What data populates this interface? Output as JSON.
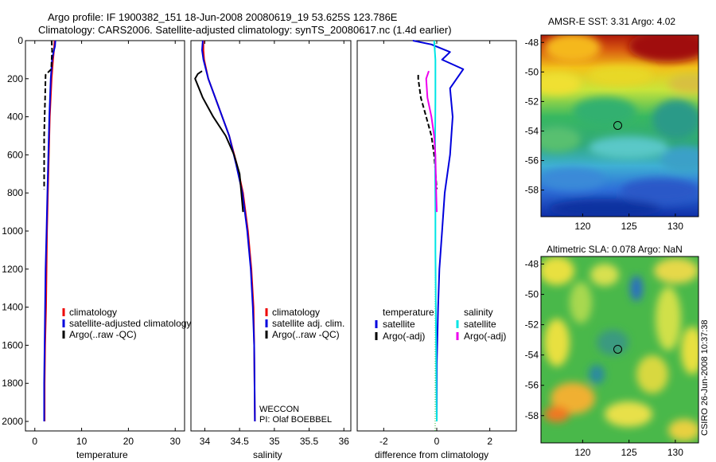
{
  "title_line1": "Argo profile: IF 1900382_151 18-Jun-2008 20080619_19 53.625S 123.786E",
  "title_line2": "Climatology: CARS2006. Satellite-adjusted climatology: synTS_20080617.nc (1.4d earlier)",
  "side_stamp": "CSIRO 26-Jun-2008 10:37:38",
  "chart_data": [
    {
      "id": "temperature",
      "type": "line",
      "xlabel": "temperature",
      "ylabel": "",
      "xlim": [
        -2,
        32
      ],
      "ylim": [
        2050,
        0
      ],
      "xticks": [
        0,
        10,
        20,
        30
      ],
      "yticks": [
        0,
        200,
        400,
        600,
        800,
        1000,
        1200,
        1400,
        1600,
        1800,
        2000
      ],
      "legend": {
        "placement": "lower-right",
        "entries": [
          {
            "label": "climatology",
            "color": "#ee0000"
          },
          {
            "label": "satellite-adjusted climatology",
            "color": "#0000dd"
          },
          {
            "label": "Argo(..raw -QC)",
            "color": "#000000"
          }
        ]
      },
      "series": [
        {
          "name": "climatology",
          "color": "#ee0000",
          "dash": false,
          "x": [
            4.2,
            4.1,
            3.9,
            3.6,
            3.2,
            3.0,
            2.8,
            2.6,
            2.5,
            2.4,
            2.2,
            2.1,
            2.1
          ],
          "y": [
            0,
            50,
            100,
            200,
            400,
            600,
            800,
            1000,
            1200,
            1400,
            1600,
            1800,
            2000
          ]
        },
        {
          "name": "satellite-adjusted climatology",
          "color": "#0000dd",
          "dash": false,
          "x": [
            4.4,
            4.3,
            4.0,
            3.7,
            3.4,
            3.1,
            2.9,
            2.7,
            2.5,
            2.3,
            2.2,
            2.1,
            2.0,
            2.0
          ],
          "y": [
            0,
            30,
            60,
            100,
            200,
            400,
            600,
            800,
            1000,
            1200,
            1400,
            1600,
            1800,
            2000
          ]
        },
        {
          "name": "Argo(..raw -QC)",
          "color": "#000000",
          "dash": true,
          "x": [
            3.6,
            3.7,
            3.5,
            2.3,
            2.2,
            2.1,
            2.0,
            2.0,
            2.0,
            2.0
          ],
          "y": [
            0,
            50,
            150,
            180,
            300,
            400,
            500,
            600,
            700,
            780
          ]
        }
      ]
    },
    {
      "id": "salinity",
      "type": "line",
      "xlabel": "salinity",
      "ylabel": "",
      "xlim": [
        33.8,
        36.1
      ],
      "ylim": [
        2050,
        0
      ],
      "xticks": [
        34,
        34.5,
        35,
        35.5,
        36
      ],
      "yticks": [],
      "legend": {
        "placement": "lower-right",
        "entries": [
          {
            "label": "climatology",
            "color": "#ee0000"
          },
          {
            "label": "satellite adj. clim.",
            "color": "#0000dd"
          },
          {
            "label": "Argo(..raw -QC)",
            "color": "#000000"
          }
        ]
      },
      "annotations": [
        "WECCON",
        "PI: Olaf BOEBBEL"
      ],
      "series": [
        {
          "name": "climatology",
          "color": "#ee0000",
          "dash": false,
          "x": [
            33.98,
            33.98,
            33.99,
            34.05,
            34.2,
            34.35,
            34.46,
            34.55,
            34.62,
            34.67,
            34.7,
            34.71,
            34.72
          ],
          "y": [
            0,
            50,
            100,
            200,
            350,
            500,
            650,
            800,
            1000,
            1200,
            1400,
            1600,
            2000
          ]
        },
        {
          "name": "satellite adj. clim.",
          "color": "#0000dd",
          "dash": false,
          "x": [
            33.97,
            33.96,
            33.98,
            34.05,
            34.2,
            34.35,
            34.45,
            34.54,
            34.61,
            34.66,
            34.69,
            34.71,
            34.72
          ],
          "y": [
            0,
            50,
            100,
            200,
            350,
            500,
            650,
            800,
            1000,
            1200,
            1400,
            1600,
            2000
          ]
        },
        {
          "name": "Argo(..raw -QC)",
          "color": "#000000",
          "dash": false,
          "x": [
            33.96,
            33.9,
            33.86,
            33.97,
            34.12,
            34.3,
            34.42,
            34.5,
            34.55
          ],
          "y": [
            160,
            175,
            200,
            300,
            400,
            500,
            600,
            700,
            900
          ]
        }
      ]
    },
    {
      "id": "difference",
      "type": "line",
      "xlabel": "difference from climatology",
      "ylabel": "",
      "xlim": [
        -3,
        3
      ],
      "ylim": [
        2050,
        0
      ],
      "xticks": [
        -2,
        0,
        2
      ],
      "yticks": [],
      "legend": {
        "placement": "lower-right",
        "columns": [
          {
            "heading": "temperature",
            "entries": [
              {
                "label": "satellite",
                "color": "#0000dd"
              },
              {
                "label": "Argo(-adj)",
                "color": "#000000"
              }
            ]
          },
          {
            "heading": "salinity",
            "entries": [
              {
                "label": "satellite",
                "color": "#00e5e5"
              },
              {
                "label": "Argo(-adj)",
                "color": "#ee00ee"
              }
            ]
          }
        ]
      },
      "series": [
        {
          "name": "temperature satellite",
          "color": "#0000dd",
          "dash": false,
          "x": [
            -0.9,
            -0.2,
            0.5,
            0.2,
            1.0,
            0.5,
            0.6,
            0.5,
            0.3,
            0.2,
            0.1,
            0.05,
            0.0,
            0.0
          ],
          "y": [
            0,
            20,
            60,
            100,
            150,
            250,
            400,
            600,
            800,
            1000,
            1200,
            1400,
            1700,
            2000
          ]
        },
        {
          "name": "temperature Argo(-adj)",
          "color": "#000000",
          "dash": true,
          "x": [
            -0.7,
            -0.7,
            -0.6,
            -0.4,
            -0.2,
            -0.1,
            0.0
          ],
          "y": [
            180,
            200,
            300,
            400,
            500,
            600,
            780
          ]
        },
        {
          "name": "salinity satellite",
          "color": "#00e5e5",
          "dash": false,
          "x": [
            -0.1,
            -0.05,
            -0.05,
            -0.06,
            -0.06,
            -0.05,
            -0.05,
            -0.04,
            -0.03,
            -0.02,
            -0.01,
            0.0
          ],
          "y": [
            0,
            100,
            300,
            500,
            700,
            900,
            1100,
            1300,
            1500,
            1700,
            1900,
            2000
          ]
        },
        {
          "name": "salinity Argo(-adj)",
          "color": "#ee00ee",
          "dash": false,
          "x": [
            -0.3,
            -0.4,
            -0.35,
            -0.2,
            -0.1,
            -0.05,
            -0.02,
            0.0
          ],
          "y": [
            160,
            200,
            300,
            400,
            500,
            600,
            800,
            900
          ]
        }
      ]
    },
    {
      "id": "sst_map",
      "type": "heatmap",
      "title": "AMSR-E SST: 3.31  Argo: 4.02",
      "xlim": [
        115.5,
        132.5
      ],
      "ylim": [
        -59.8,
        -47.5
      ],
      "xticks": [
        120,
        125,
        130
      ],
      "yticks": [
        -48,
        -50,
        -52,
        -54,
        -56,
        -58
      ],
      "marker": {
        "lon": 123.786,
        "lat": -53.625
      }
    },
    {
      "id": "sla_map",
      "type": "heatmap",
      "title": "Altimetric SLA: 0.078  Argo: NaN",
      "xlim": [
        115.5,
        132.5
      ],
      "ylim": [
        -59.8,
        -47.5
      ],
      "xticks": [
        120,
        125,
        130
      ],
      "yticks": [
        -48,
        -50,
        -52,
        -54,
        -56,
        -58
      ],
      "marker": {
        "lon": 123.786,
        "lat": -53.625
      }
    }
  ]
}
